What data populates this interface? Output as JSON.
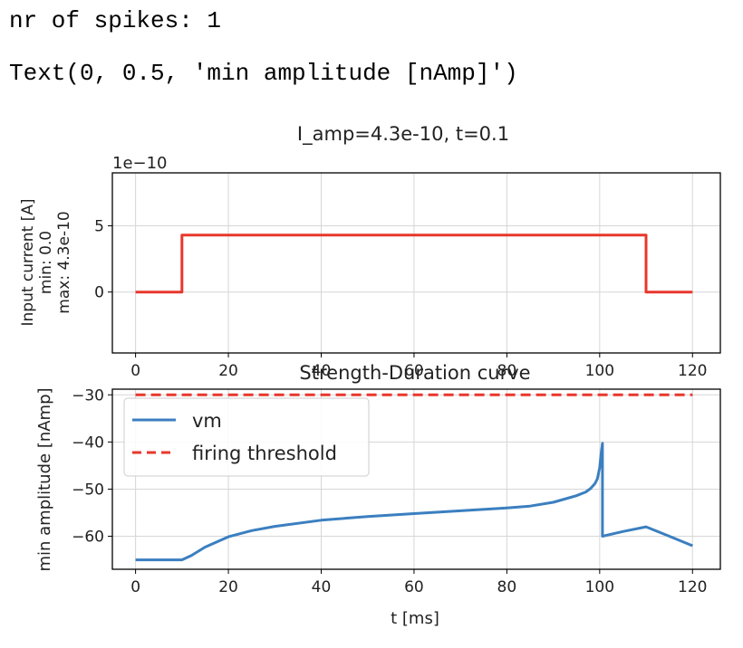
{
  "output": {
    "line1": "nr of spikes: 1",
    "line2": "Text(0, 0.5, 'min amplitude [nAmp]')"
  },
  "chart_data": [
    {
      "type": "line",
      "title": "I_amp=4.3e-10, t=0.1",
      "xlabel": "",
      "ylabel": "Input current [A]",
      "ylabel_lines": [
        "Input current [A]",
        "min: 0.0",
        "max: 4.3e-10"
      ],
      "offset_text": "1e−10",
      "xlim": [
        -5,
        126
      ],
      "ylim": [
        -4.6,
        9.0
      ],
      "x_ticks": [
        0,
        20,
        40,
        60,
        80,
        100,
        120
      ],
      "x_tick_labels": [
        "0",
        "20",
        "40",
        "60",
        "80",
        "100",
        "120"
      ],
      "y_ticks": [
        0,
        5
      ],
      "y_tick_labels": [
        "0",
        "5"
      ],
      "grid": true,
      "color": "#e8372c",
      "series": [
        {
          "x": [
            0,
            10,
            10,
            110,
            110,
            120
          ],
          "y": [
            0,
            0,
            4.3,
            4.3,
            0,
            0
          ]
        }
      ]
    },
    {
      "type": "line",
      "title": "Strength-Duration curve",
      "xlabel": "t [ms]",
      "ylabel": "min amplitude [nAmp]",
      "xlim": [
        -5,
        126
      ],
      "ylim": [
        -67.0,
        -28.8
      ],
      "x_ticks": [
        0,
        20,
        40,
        60,
        80,
        100,
        120
      ],
      "x_tick_labels": [
        "0",
        "20",
        "40",
        "60",
        "80",
        "100",
        "120"
      ],
      "y_ticks": [
        -30,
        -40,
        -50,
        -60
      ],
      "y_tick_labels": [
        "−30",
        "−40",
        "−50",
        "−60"
      ],
      "grid": true,
      "legend_position": "top-left",
      "series": [
        {
          "name": "vm",
          "color": "#3b7fc0",
          "style": "solid",
          "x": [
            0,
            10,
            12,
            15,
            20,
            25,
            30,
            40,
            50,
            60,
            70,
            80,
            85,
            90,
            95,
            97,
            98,
            99,
            99.5,
            100,
            100.3,
            100.6,
            100.6,
            105,
            110,
            115,
            120
          ],
          "y": [
            -65,
            -65,
            -64.1,
            -62.3,
            -60.1,
            -58.8,
            -57.9,
            -56.6,
            -55.8,
            -55.2,
            -54.6,
            -54,
            -53.6,
            -52.8,
            -51.4,
            -50.6,
            -49.9,
            -48.8,
            -47.8,
            -45.5,
            -42.5,
            -40.3,
            -60,
            -59,
            -58,
            -60,
            -62
          ]
        },
        {
          "name": "firing threshold",
          "color": "#e8372c",
          "style": "dashed",
          "x": [
            0,
            120
          ],
          "y": [
            -30,
            -30
          ]
        }
      ]
    }
  ]
}
